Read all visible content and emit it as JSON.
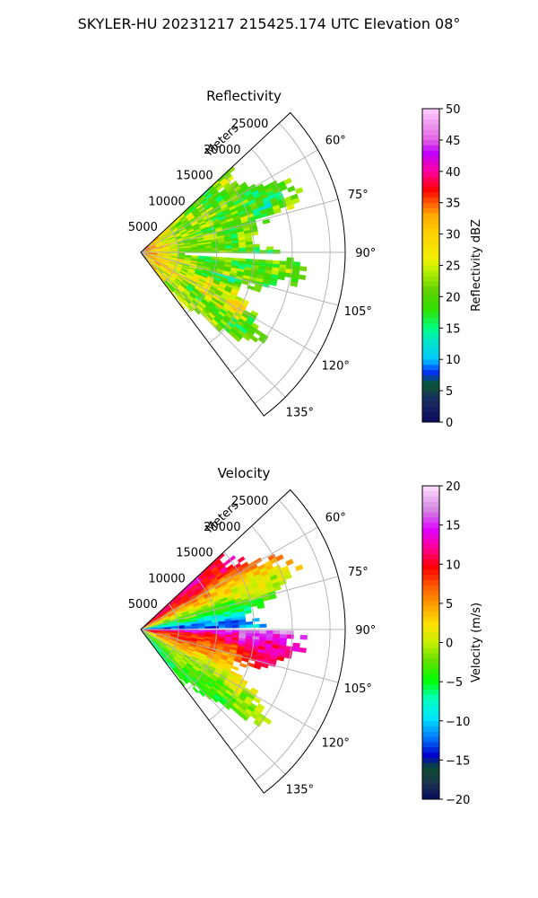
{
  "suptitle": "SKYLER-HU  20231217  215425.174 UTC Elevation 08°",
  "colors": {
    "background": "#ffffff",
    "grid": "#b0b0b0",
    "axis": "#000000",
    "gap": "#ffffff"
  },
  "chart_data": [
    {
      "type": "heatmap",
      "subtype": "polar-sector-radar-ppi",
      "title": "Reflectivity",
      "r_label": "Meters",
      "r_ticks": [
        5000,
        10000,
        15000,
        20000,
        25000
      ],
      "r_tick_labels": [
        "5000",
        "10000",
        "15000",
        "20000",
        "25000"
      ],
      "rmax": 27000,
      "data_range_m": [
        0,
        22500
      ],
      "theta_range_deg": [
        47,
        143
      ],
      "theta_ticks": [
        60,
        75,
        90,
        105,
        120,
        135
      ],
      "theta_tick_labels": [
        "60°",
        "75°",
        "90°",
        "105°",
        "120°",
        "135°"
      ],
      "colorbar": {
        "label": "Reflectivity dBZ",
        "vmin": 0,
        "vmax": 50,
        "ticks": [
          0,
          5,
          10,
          15,
          20,
          25,
          30,
          35,
          40,
          45,
          50
        ],
        "tick_labels": [
          "0",
          "5",
          "10",
          "15",
          "20",
          "25",
          "30",
          "35",
          "40",
          "45",
          "50"
        ],
        "colormap": "nws-reflectivity"
      },
      "fields": {
        "base_value": 21,
        "near_range_value": 35,
        "far_value": 18,
        "beam_blockage_azimuth_deg": 92,
        "beam_blockage_range_m": [
          5500,
          19500
        ]
      }
    },
    {
      "type": "heatmap",
      "subtype": "polar-sector-radar-ppi",
      "title": "Velocity",
      "r_label": "Meters",
      "r_ticks": [
        5000,
        10000,
        15000,
        20000,
        25000
      ],
      "r_tick_labels": [
        "5000",
        "10000",
        "15000",
        "20000",
        "25000"
      ],
      "rmax": 27000,
      "data_range_m": [
        0,
        22500
      ],
      "theta_range_deg": [
        47,
        143
      ],
      "theta_ticks": [
        60,
        75,
        90,
        105,
        120,
        135
      ],
      "theta_tick_labels": [
        "60°",
        "75°",
        "90°",
        "105°",
        "120°",
        "135°"
      ],
      "colorbar": {
        "label": "Velocity (m/s)",
        "vmin": -20,
        "vmax": 20,
        "ticks": [
          -20,
          -15,
          -10,
          -5,
          0,
          5,
          10,
          15,
          20
        ],
        "tick_labels": [
          "−20",
          "−15",
          "−10",
          "−5",
          "0",
          "5",
          "10",
          "15",
          "20"
        ],
        "colormap": "nws-velocity"
      },
      "fields": {
        "azimuth_profile_deg": [
          47,
          55,
          62,
          70,
          78,
          84,
          88,
          91,
          94,
          96,
          100,
          110,
          125,
          143
        ],
        "azimuth_profile_ms": [
          11,
          10,
          5,
          0,
          -5,
          -11,
          -14,
          16,
          12,
          10,
          9,
          5,
          -2,
          -6
        ]
      }
    }
  ]
}
